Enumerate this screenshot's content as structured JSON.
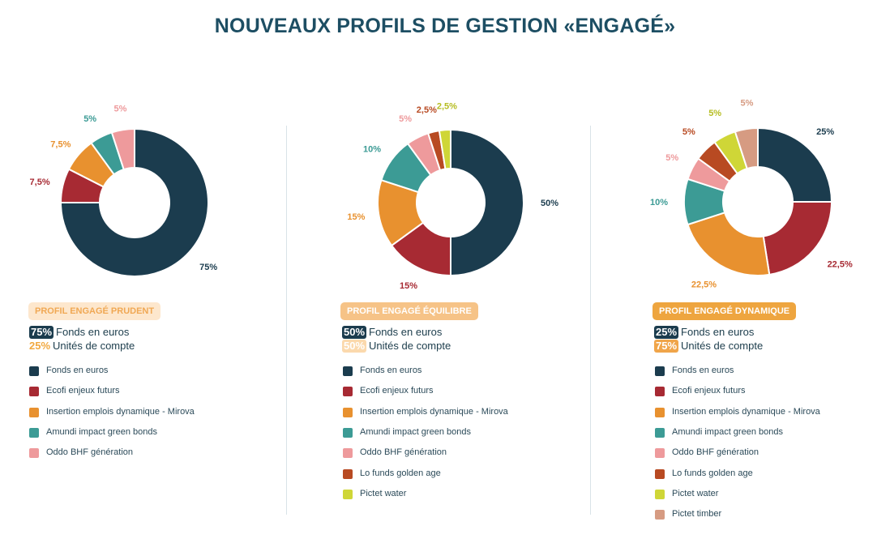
{
  "title": "NOUVEAUX PROFILS DE GESTION «ENGAGÉ»",
  "colors": {
    "fonds_euros": "#1b3c4e",
    "ecofi": "#a72a33",
    "insertion": "#e8912f",
    "amundi": "#3c9b95",
    "oddo": "#ee9a9c",
    "lo_funds": "#b84a22",
    "pictet_water": "#cfd637",
    "pictet_timber": "#d69b82",
    "title": "#1d4e63"
  },
  "chart_data": [
    {
      "type": "pie",
      "subtype": "donut",
      "profile_label": "PROFIL ENGAGÉ PRUDENT",
      "badge_bg": "#fde7cd",
      "badge_fg": "#f0a854",
      "allocation": [
        {
          "pct": "75%",
          "text": "Fonds en euros",
          "style": "dark"
        },
        {
          "pct": "25%",
          "text": "Unités de compte",
          "style": "orange-text"
        }
      ],
      "slices": [
        {
          "name": "Fonds en euros",
          "value": 75,
          "label": "75%",
          "color": "#1b3c4e"
        },
        {
          "name": "Ecofi enjeux futurs",
          "value": 7.5,
          "label": "7,5%",
          "color": "#a72a33"
        },
        {
          "name": "Insertion emplois dynamique - Mirova",
          "value": 7.5,
          "label": "7,5%",
          "color": "#e8912f"
        },
        {
          "name": "Amundi impact green bonds",
          "value": 5,
          "label": "5%",
          "color": "#3c9b95"
        },
        {
          "name": "Oddo BHF génération",
          "value": 5,
          "label": "5%",
          "color": "#ee9a9c"
        }
      ]
    },
    {
      "type": "pie",
      "subtype": "donut",
      "profile_label": "PROFIL ENGAGÉ ÉQUILIBRE",
      "badge_bg": "#f6c387",
      "badge_fg": "#ffffff",
      "allocation": [
        {
          "pct": "50%",
          "text": "Fonds en euros",
          "style": "dark"
        },
        {
          "pct": "50%",
          "text": "Unités de compte",
          "style": "light-orange"
        }
      ],
      "slices": [
        {
          "name": "Fonds en euros",
          "value": 50,
          "label": "50%",
          "color": "#1b3c4e"
        },
        {
          "name": "Ecofi enjeux futurs",
          "value": 15,
          "label": "15%",
          "color": "#a72a33"
        },
        {
          "name": "Insertion emplois dynamique - Mirova",
          "value": 15,
          "label": "15%",
          "color": "#e8912f"
        },
        {
          "name": "Amundi impact green bonds",
          "value": 10,
          "label": "10%",
          "color": "#3c9b95"
        },
        {
          "name": "Oddo BHF génération",
          "value": 5,
          "label": "5%",
          "color": "#ee9a9c"
        },
        {
          "name": "Lo funds golden age",
          "value": 2.5,
          "label": "2,5%",
          "color": "#b84a22"
        },
        {
          "name": "Pictet water",
          "value": 2.5,
          "label": "2,5%",
          "color": "#cfd637"
        }
      ]
    },
    {
      "type": "pie",
      "subtype": "donut",
      "profile_label": "PROFIL ENGAGÉ DYNAMIQUE",
      "badge_bg": "#eea53f",
      "badge_fg": "#ffffff",
      "allocation": [
        {
          "pct": "25%",
          "text": "Fonds en euros",
          "style": "dark"
        },
        {
          "pct": "75%",
          "text": "Unités de compte",
          "style": "orange-fill"
        }
      ],
      "slices": [
        {
          "name": "Fonds en euros",
          "value": 25,
          "label": "25%",
          "color": "#1b3c4e"
        },
        {
          "name": "Ecofi enjeux futurs",
          "value": 22.5,
          "label": "22,5%",
          "color": "#a72a33"
        },
        {
          "name": "Insertion emplois dynamique - Mirova",
          "value": 22.5,
          "label": "22,5%",
          "color": "#e8912f"
        },
        {
          "name": "Amundi impact green bonds",
          "value": 10,
          "label": "10%",
          "color": "#3c9b95"
        },
        {
          "name": "Oddo BHF génération",
          "value": 5,
          "label": "5%",
          "color": "#ee9a9c"
        },
        {
          "name": "Lo funds golden age",
          "value": 5,
          "label": "5%",
          "color": "#b84a22"
        },
        {
          "name": "Pictet water",
          "value": 5,
          "label": "5%",
          "color": "#cfd637"
        },
        {
          "name": "Pictet timber",
          "value": 5,
          "label": "5%",
          "color": "#d69b82"
        }
      ]
    }
  ]
}
